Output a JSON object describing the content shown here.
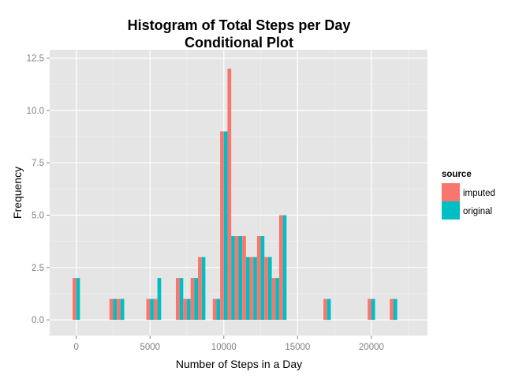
{
  "chart_data": {
    "type": "bar",
    "title": "Histogram of Total Steps per Day",
    "subtitle": "Conditional Plot",
    "xlabel": "Number of Steps in a Day",
    "ylabel": "Frequency",
    "xlim": [
      -1800,
      23800
    ],
    "ylim": [
      -0.75,
      12.9
    ],
    "x_ticks": [
      0,
      5000,
      10000,
      15000,
      20000
    ],
    "x_tick_labels": [
      "0",
      "5000",
      "10000",
      "15000",
      "20000"
    ],
    "y_ticks": [
      0,
      2.5,
      5,
      7.5,
      10,
      12.5
    ],
    "y_tick_labels": [
      "0.0",
      "2.5",
      "5.0",
      "7.5",
      "10.0",
      "12.5"
    ],
    "bin_width": 1000,
    "x": [
      0,
      2500,
      3000,
      5000,
      5500,
      7000,
      7500,
      8000,
      8500,
      9500,
      10000,
      10500,
      11000,
      11500,
      12000,
      12500,
      13000,
      13500,
      14000,
      14500,
      17000,
      20000,
      21500
    ],
    "grid": true,
    "legend": {
      "title": "source",
      "placement": "right"
    },
    "series": [
      {
        "name": "imputed",
        "color": "#F8766D",
        "values": [
          2,
          1,
          1,
          1,
          1,
          2,
          1,
          2,
          3,
          1,
          9,
          12,
          4,
          4,
          3,
          4,
          3,
          2,
          5,
          0,
          1,
          1,
          1
        ]
      },
      {
        "name": "original",
        "color": "#00BFC4",
        "values": [
          2,
          1,
          1,
          1,
          2,
          2,
          1,
          2,
          3,
          1,
          9,
          4,
          4,
          3,
          3,
          4,
          3,
          2,
          5,
          0,
          1,
          1,
          1
        ]
      }
    ]
  },
  "colors": {
    "panel_background": "#E5E5E5",
    "grid_major": "#FFFFFF",
    "grid_minor": "#F2F2F2",
    "tick_text": "#7F7F7F"
  }
}
